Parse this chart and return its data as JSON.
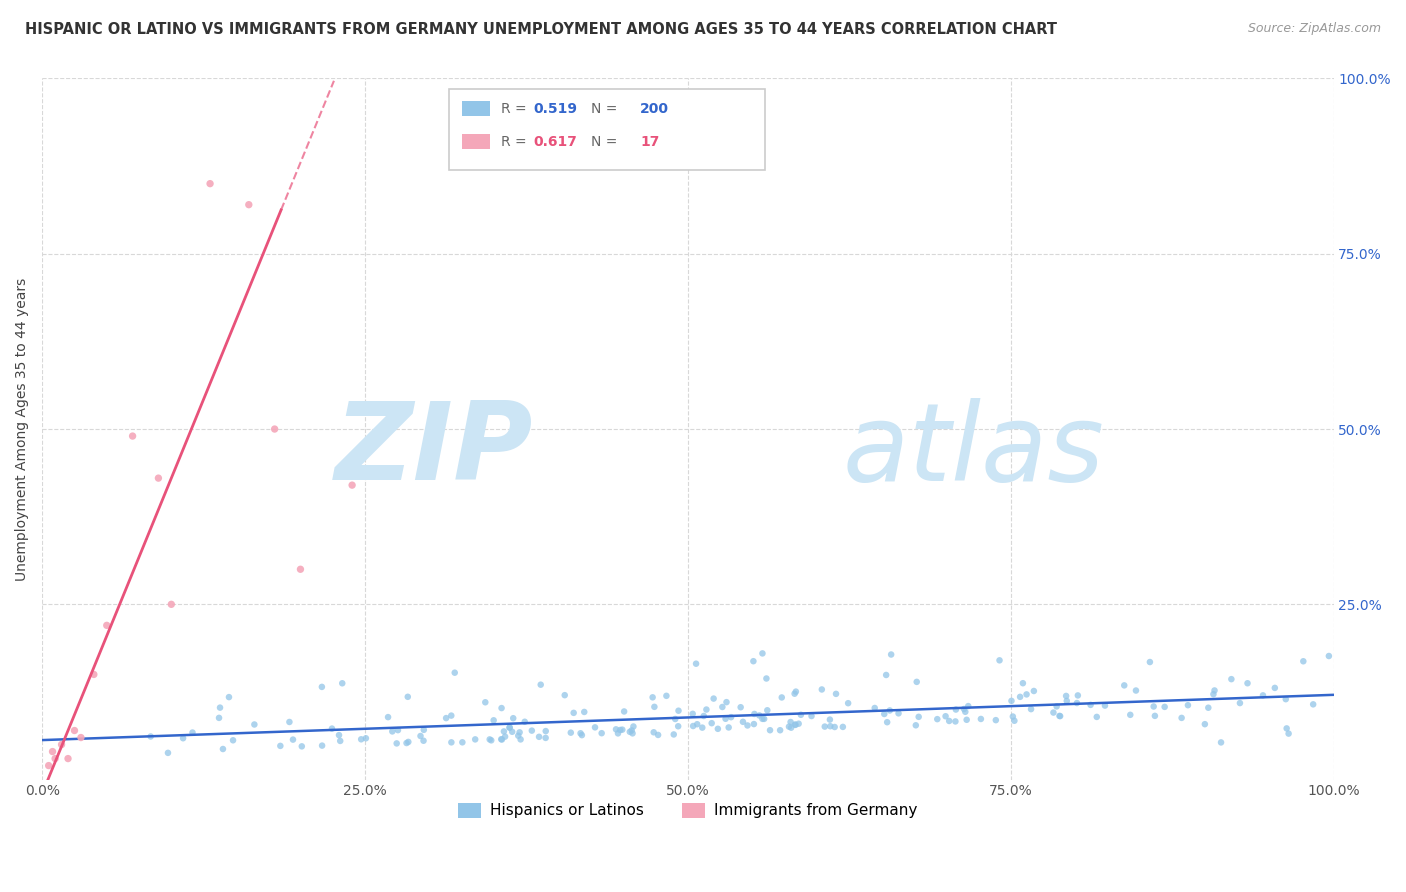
{
  "title": "HISPANIC OR LATINO VS IMMIGRANTS FROM GERMANY UNEMPLOYMENT AMONG AGES 35 TO 44 YEARS CORRELATION CHART",
  "source": "Source: ZipAtlas.com",
  "ylabel": "Unemployment Among Ages 35 to 44 years",
  "blue_label": "Hispanics or Latinos",
  "pink_label": "Immigrants from Germany",
  "blue_R": 0.519,
  "blue_N": 200,
  "pink_R": 0.617,
  "pink_N": 17,
  "blue_color": "#92C5E8",
  "pink_color": "#F4A7B9",
  "blue_line_color": "#3366CC",
  "pink_line_color": "#E8527A",
  "background_color": "#ffffff",
  "watermark_zip": "ZIP",
  "watermark_atlas": "atlas",
  "watermark_color": "#cce5f5",
  "x_tick_labels": [
    "0.0%",
    "25.0%",
    "50.0%",
    "75.0%",
    "100.0%"
  ],
  "x_tick_vals": [
    0.0,
    0.25,
    0.5,
    0.75,
    1.0
  ],
  "y_tick_labels": [
    "25.0%",
    "50.0%",
    "75.0%",
    "100.0%"
  ],
  "y_tick_vals": [
    0.25,
    0.5,
    0.75,
    1.0
  ],
  "right_y_tick_color": "#3366CC",
  "xlim": [
    0,
    1.0
  ],
  "ylim": [
    0,
    1.0
  ]
}
